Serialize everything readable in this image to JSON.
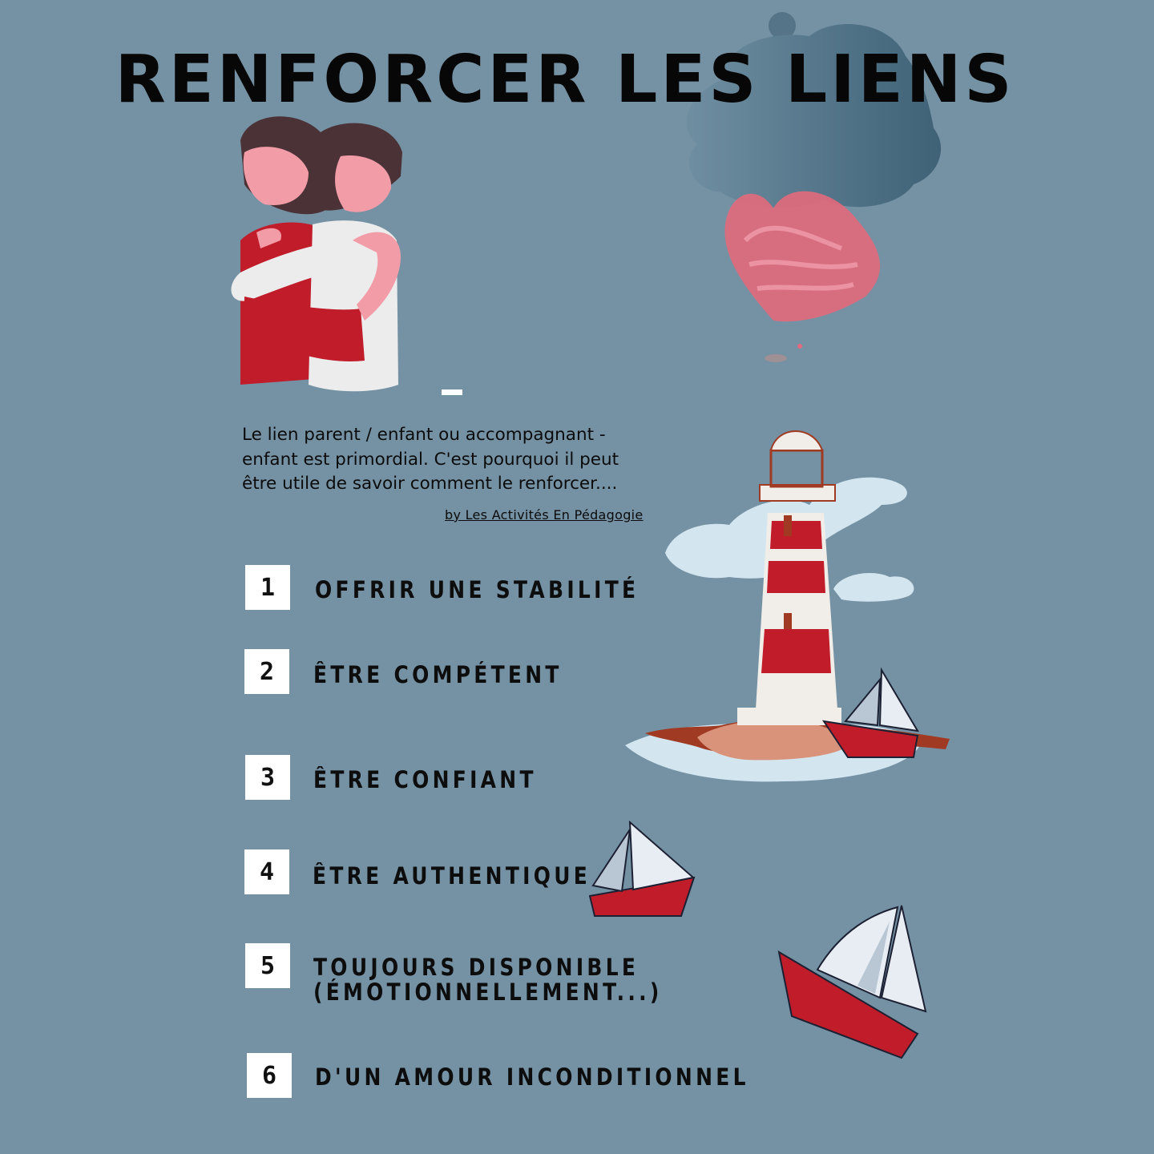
{
  "title": "RENFORCER LES LIENS",
  "intro": "Le lien parent / enfant ou accompagnant - enfant est primordial. C'est pourquoi  il peut être utile de savoir comment le renforcer....",
  "credit": "by Les Activités En Pédagogie",
  "items": [
    {
      "number": "1",
      "label": "OFFRIR UNE STABILITÉ"
    },
    {
      "number": "2",
      "label": "ÊTRE COMPÉTENT"
    },
    {
      "number": "3",
      "label": "ÊTRE CONFIANT"
    },
    {
      "number": "4",
      "label": "ÊTRE AUTHENTIQUE"
    },
    {
      "number": "5",
      "label_line1": "TOUJOURS DISPONIBLE",
      "label_line2": "(ÉMOTIONNELLEMENT...)"
    },
    {
      "number": "6",
      "label": "D'UN AMOUR INCONDITIONNEL"
    }
  ],
  "colors": {
    "background": "#7592a4",
    "accent_red": "#c01c2a",
    "box": "#ffffff",
    "text": "#0b0b0b"
  },
  "illustrations": [
    "hug-illustration",
    "heart-icon",
    "cloud-blob",
    "lighthouse-illustration",
    "sailboat-icon"
  ]
}
